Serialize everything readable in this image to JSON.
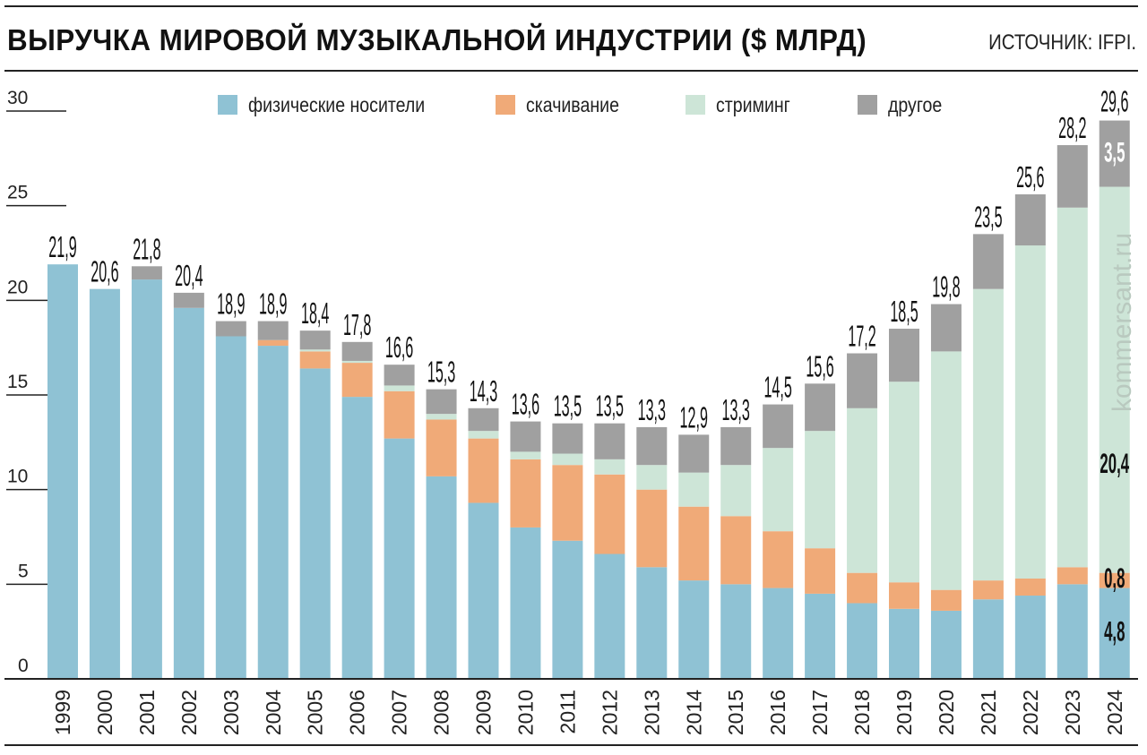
{
  "header": {
    "title": "ВЫРУЧКА МИРОВОЙ МУЗЫКАЛЬНОЙ ИНДУСТРИИ ($ МЛРД)",
    "source": "ИСТОЧНИК: IFPI."
  },
  "watermark": "kommersant.ru",
  "colors": {
    "physical": "#8fc2d4",
    "download": "#f0aa78",
    "streaming": "#cde5d7",
    "other": "#a0a0a0",
    "axis": "#222222"
  },
  "chart_data": {
    "type": "bar",
    "stacked": true,
    "title": "ВЫРУЧКА МИРОВОЙ МУЗЫКАЛЬНОЙ ИНДУСТРИИ ($ МЛРД)",
    "xlabel": "",
    "ylabel": "",
    "ylim": [
      0,
      30
    ],
    "yticks": [
      0,
      5,
      10,
      15,
      20,
      25,
      30
    ],
    "ytick_labels": [
      "0",
      "5",
      "10",
      "15",
      "20",
      "25",
      "30"
    ],
    "grid": false,
    "legend_position": "top",
    "categories": [
      "1999",
      "2000",
      "2001",
      "2002",
      "2003",
      "2004",
      "2005",
      "2006",
      "2007",
      "2008",
      "2009",
      "2010",
      "2011",
      "2012",
      "2013",
      "2014",
      "2015",
      "2016",
      "2017",
      "2018",
      "2019",
      "2020",
      "2021",
      "2022",
      "2023",
      "2024"
    ],
    "series": [
      {
        "key": "physical",
        "name": "физические носители",
        "values": [
          21.9,
          20.6,
          21.1,
          19.6,
          18.1,
          17.6,
          16.4,
          14.9,
          12.7,
          10.7,
          9.3,
          8.0,
          7.3,
          6.6,
          5.9,
          5.2,
          5.0,
          4.8,
          4.5,
          4.0,
          3.7,
          3.6,
          4.2,
          4.4,
          5.0,
          4.8
        ]
      },
      {
        "key": "download",
        "name": "скачивание",
        "values": [
          0,
          0,
          0,
          0,
          0,
          0.3,
          0.9,
          1.8,
          2.5,
          3.0,
          3.4,
          3.6,
          4.0,
          4.2,
          4.1,
          3.9,
          3.6,
          3.0,
          2.4,
          1.6,
          1.4,
          1.1,
          1.0,
          0.9,
          0.9,
          0.8
        ]
      },
      {
        "key": "streaming",
        "name": "стриминг",
        "values": [
          0,
          0,
          0,
          0,
          0,
          0,
          0.1,
          0.1,
          0.3,
          0.3,
          0.4,
          0.4,
          0.6,
          0.8,
          1.3,
          1.8,
          2.7,
          4.4,
          6.2,
          8.7,
          10.6,
          12.6,
          15.4,
          17.6,
          19.0,
          20.4
        ]
      },
      {
        "key": "other",
        "name": "другое",
        "values": [
          0,
          0,
          0.7,
          0.8,
          0.8,
          1.0,
          1.0,
          1.0,
          1.1,
          1.3,
          1.2,
          1.6,
          1.6,
          1.9,
          2.0,
          2.0,
          2.0,
          2.3,
          2.5,
          2.9,
          2.8,
          2.5,
          2.9,
          2.7,
          3.3,
          3.5
        ]
      }
    ],
    "totals": [
      21.9,
      20.6,
      21.8,
      20.4,
      18.9,
      18.9,
      18.4,
      17.8,
      16.6,
      15.3,
      14.3,
      13.6,
      13.5,
      13.5,
      13.3,
      12.9,
      13.3,
      14.5,
      15.6,
      17.2,
      18.5,
      19.8,
      23.5,
      25.6,
      28.2,
      29.6
    ],
    "total_labels": [
      "21,9",
      "20,6",
      "21,8",
      "20,4",
      "18,9",
      "18,9",
      "18,4",
      "17,8",
      "16,6",
      "15,3",
      "14,3",
      "13,6",
      "13,5",
      "13,5",
      "13,3",
      "12,9",
      "13,3",
      "14,5",
      "15,6",
      "17,2",
      "18,5",
      "19,8",
      "23,5",
      "25,6",
      "28,2",
      "29,6"
    ],
    "annotations": [
      {
        "category": "2024",
        "series": "other",
        "text": "3,5"
      },
      {
        "category": "2024",
        "series": "streaming",
        "text": "20,4"
      },
      {
        "category": "2024",
        "series": "download",
        "text": "0,8"
      },
      {
        "category": "2024",
        "series": "physical",
        "text": "4,8"
      }
    ]
  }
}
